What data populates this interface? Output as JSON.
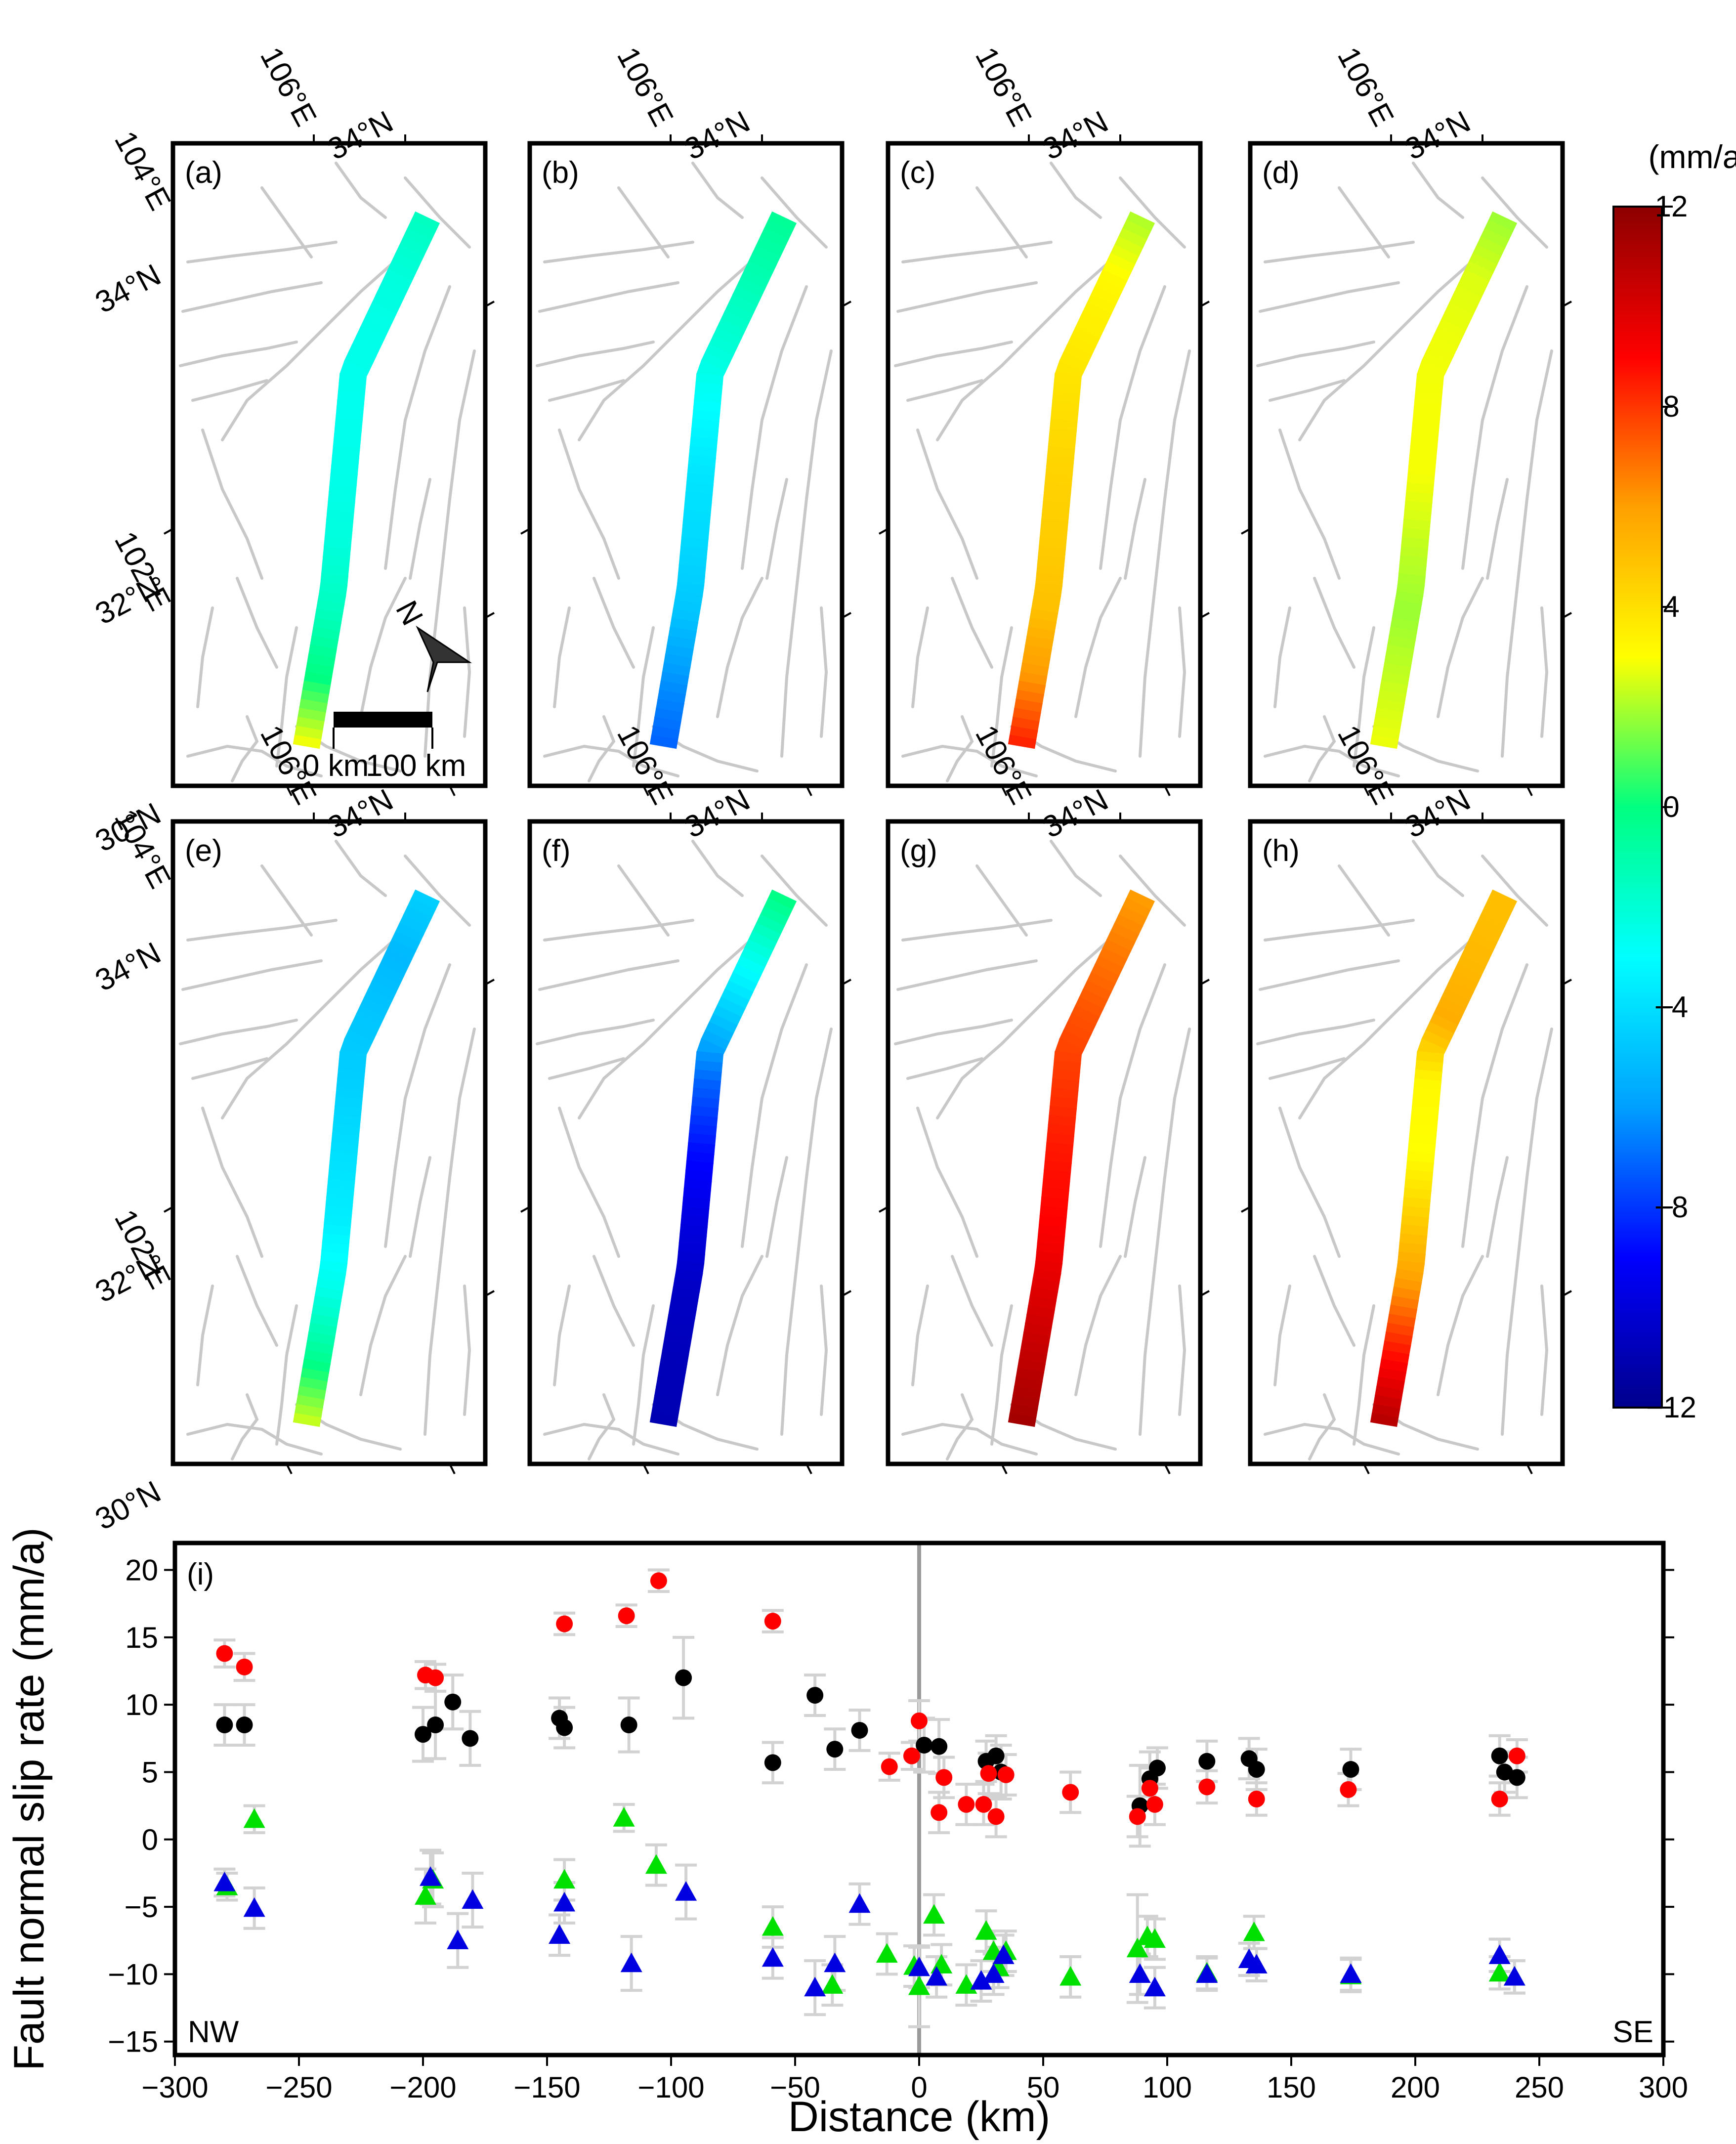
{
  "panels": [
    {
      "id": "a",
      "label": "(a)"
    },
    {
      "id": "b",
      "label": "(b)"
    },
    {
      "id": "c",
      "label": "(c)"
    },
    {
      "id": "d",
      "label": "(d)"
    },
    {
      "id": "e",
      "label": "(e)"
    },
    {
      "id": "f",
      "label": "(f)"
    },
    {
      "id": "g",
      "label": "(g)"
    },
    {
      "id": "h",
      "label": "(h)"
    }
  ],
  "map_labels": {
    "lon_top": "106°E",
    "lat_top": "34°N",
    "left_lat_upper": "34°N",
    "left_lon_upper": "104°E",
    "left_lat_mid": "32°N",
    "left_lon_mid": "102°E",
    "left_lat_bottom": "30°N",
    "north_arrow": "N",
    "scale_start": "0 km",
    "scale_end": "100 km"
  },
  "colorbar": {
    "unit": "(mm/a)",
    "min": -12,
    "max": 12,
    "ticks": [
      "12",
      "8",
      "4",
      "0",
      "−4",
      "−8",
      "−12"
    ],
    "colors": [
      "#00008c",
      "#0000ff",
      "#00a0ff",
      "#00ffff",
      "#00ff80",
      "#ffff00",
      "#ffa000",
      "#ff0000",
      "#8c0000"
    ]
  },
  "panel_rates": {
    "a": [
      -1.5,
      -2.2,
      -2.5,
      -2.6,
      -2.5,
      -2.2,
      -1.5,
      0.0,
      3.0
    ],
    "b": [
      -0.5,
      -1.2,
      -2.0,
      -3.0,
      -3.8,
      -4.2,
      -4.8,
      -6.2,
      -7.2
    ],
    "c": [
      2.0,
      3.2,
      3.6,
      4.0,
      4.4,
      4.6,
      5.0,
      6.2,
      8.5
    ],
    "d": [
      1.8,
      2.6,
      2.8,
      2.9,
      2.9,
      2.3,
      1.8,
      2.3,
      2.8
    ],
    "e": [
      -4.5,
      -5.2,
      -4.8,
      -4.5,
      -4.0,
      -3.5,
      -2.5,
      -0.5,
      2.5
    ],
    "f": [
      0.0,
      -2.5,
      -4.8,
      -7.2,
      -8.8,
      -9.8,
      -10.5,
      -10.8,
      -11.0
    ],
    "g": [
      6.0,
      6.8,
      7.5,
      8.0,
      8.6,
      9.0,
      9.8,
      10.6,
      11.4
    ],
    "h": [
      5.0,
      5.2,
      5.6,
      3.2,
      3.0,
      4.6,
      6.2,
      8.8,
      11.0
    ]
  },
  "chart_data": {
    "type": "scatter",
    "panel_label": "(i)",
    "xlabel": "Distance (km)",
    "ylabel": "Fault normal slip rate (mm/a)",
    "xlim": [
      -300,
      300
    ],
    "ylim": [
      -16,
      22
    ],
    "xticks": [
      -300,
      -250,
      -200,
      -150,
      -100,
      -50,
      0,
      50,
      100,
      150,
      200,
      250,
      300
    ],
    "yticks": [
      -15,
      -10,
      -5,
      0,
      5,
      10,
      15,
      20
    ],
    "left_annotation": "NW",
    "right_annotation": "SE",
    "reference_line_x": 0,
    "series": [
      {
        "marker": "circle",
        "color": "#000000",
        "points": [
          [
            -280,
            8.5,
            1.5
          ],
          [
            -272,
            8.5,
            1.5
          ],
          [
            -200,
            7.8,
            2.0
          ],
          [
            -195,
            8.5,
            2.5
          ],
          [
            -188,
            10.2,
            2.0
          ],
          [
            -181,
            7.5,
            2.0
          ],
          [
            -145,
            9.0,
            1.5
          ],
          [
            -143,
            8.3,
            1.5
          ],
          [
            -117,
            8.5,
            2.0
          ],
          [
            -95,
            12.0,
            3.0
          ],
          [
            -59,
            5.7,
            1.5
          ],
          [
            -42,
            10.7,
            1.5
          ],
          [
            -34,
            6.7,
            1.5
          ],
          [
            -24,
            8.1,
            1.5
          ],
          [
            2,
            7.0,
            2.0
          ],
          [
            8,
            6.9,
            2.0
          ],
          [
            27,
            5.8,
            1.5
          ],
          [
            31,
            6.2,
            1.5
          ],
          [
            33,
            5.0,
            2.0
          ],
          [
            89,
            2.5,
            3.0
          ],
          [
            93,
            4.5,
            2.0
          ],
          [
            96,
            5.3,
            1.5
          ],
          [
            116,
            5.8,
            1.5
          ],
          [
            133,
            6.0,
            1.5
          ],
          [
            136,
            5.2,
            1.5
          ],
          [
            174,
            5.2,
            1.5
          ],
          [
            234,
            6.2,
            1.5
          ],
          [
            236,
            5.0,
            1.5
          ],
          [
            241,
            4.6,
            1.5
          ]
        ]
      },
      {
        "marker": "circle",
        "color": "#ff0000",
        "points": [
          [
            -280,
            13.8,
            1.0
          ],
          [
            -272,
            12.8,
            1.0
          ],
          [
            -199,
            12.2,
            1.0
          ],
          [
            -195,
            12.0,
            1.0
          ],
          [
            -143,
            16.0,
            0.8
          ],
          [
            -118,
            16.6,
            0.8
          ],
          [
            -105,
            19.2,
            0.8
          ],
          [
            -59,
            16.2,
            0.8
          ],
          [
            -12,
            5.4,
            1.0
          ],
          [
            -3,
            6.2,
            1.0
          ],
          [
            0,
            8.8,
            1.5
          ],
          [
            8,
            2.0,
            1.5
          ],
          [
            10,
            4.6,
            1.5
          ],
          [
            19,
            2.6,
            1.5
          ],
          [
            26,
            2.6,
            1.5
          ],
          [
            28,
            4.9,
            1.5
          ],
          [
            31,
            1.7,
            1.5
          ],
          [
            35,
            4.8,
            1.5
          ],
          [
            61,
            3.5,
            1.5
          ],
          [
            88,
            1.7,
            1.5
          ],
          [
            93,
            3.8,
            1.5
          ],
          [
            95,
            2.6,
            1.5
          ],
          [
            116,
            3.9,
            1.2
          ],
          [
            136,
            3.0,
            1.2
          ],
          [
            173,
            3.7,
            1.2
          ],
          [
            234,
            3.0,
            1.2
          ],
          [
            241,
            6.2,
            1.2
          ]
        ]
      },
      {
        "marker": "triangle",
        "color": "#00e000",
        "points": [
          [
            -279,
            -3.5,
            1.0
          ],
          [
            -268,
            1.5,
            1.0
          ],
          [
            -199,
            -4.2,
            2.0
          ],
          [
            -196,
            -3.0,
            2.0
          ],
          [
            -143,
            -3.0,
            1.5
          ],
          [
            -119,
            1.6,
            1.0
          ],
          [
            -106,
            -1.9,
            1.5
          ],
          [
            -59,
            -6.5,
            1.5
          ],
          [
            -35,
            -10.8,
            1.5
          ],
          [
            -13,
            -8.5,
            1.5
          ],
          [
            -2,
            -9.4,
            1.5
          ],
          [
            0,
            -10.9,
            3.0
          ],
          [
            6,
            -5.6,
            1.5
          ],
          [
            9,
            -9.3,
            1.5
          ],
          [
            19,
            -10.8,
            1.5
          ],
          [
            27,
            -6.8,
            1.5
          ],
          [
            30,
            -8.3,
            1.5
          ],
          [
            32,
            -9.5,
            1.5
          ],
          [
            35,
            -8.3,
            1.5
          ],
          [
            61,
            -10.2,
            1.5
          ],
          [
            88,
            -8.1,
            4.0
          ],
          [
            92,
            -7.2,
            1.5
          ],
          [
            95,
            -7.4,
            1.5
          ],
          [
            116,
            -9.9,
            1.2
          ],
          [
            135,
            -6.9,
            1.2
          ],
          [
            174,
            -10.1,
            1.2
          ],
          [
            234,
            -9.9,
            1.2
          ],
          [
            240,
            -10.2,
            1.2
          ]
        ]
      },
      {
        "marker": "triangle",
        "color": "#0000e0",
        "points": [
          [
            -280,
            -3.2,
            1.0
          ],
          [
            -268,
            -5.1,
            1.5
          ],
          [
            -197,
            -2.8,
            2.0
          ],
          [
            -186,
            -7.5,
            2.0
          ],
          [
            -180,
            -4.5,
            2.0
          ],
          [
            -145,
            -7.1,
            1.5
          ],
          [
            -143,
            -4.7,
            1.5
          ],
          [
            -116,
            -9.2,
            2.0
          ],
          [
            -94,
            -3.9,
            2.0
          ],
          [
            -59,
            -8.8,
            1.5
          ],
          [
            -42,
            -11.0,
            2.0
          ],
          [
            -34,
            -9.2,
            2.0
          ],
          [
            -24,
            -4.8,
            1.5
          ],
          [
            0,
            -9.5,
            1.5
          ],
          [
            7,
            -10.2,
            1.5
          ],
          [
            25,
            -10.5,
            1.5
          ],
          [
            30,
            -10.0,
            1.5
          ],
          [
            34,
            -8.6,
            1.5
          ],
          [
            89,
            -10.0,
            1.5
          ],
          [
            95,
            -11.0,
            1.5
          ],
          [
            116,
            -10.0,
            1.2
          ],
          [
            133,
            -8.9,
            1.2
          ],
          [
            136,
            -9.3,
            1.2
          ],
          [
            174,
            -10.0,
            1.2
          ],
          [
            234,
            -8.6,
            1.2
          ],
          [
            240,
            -10.2,
            1.2
          ]
        ]
      }
    ]
  }
}
